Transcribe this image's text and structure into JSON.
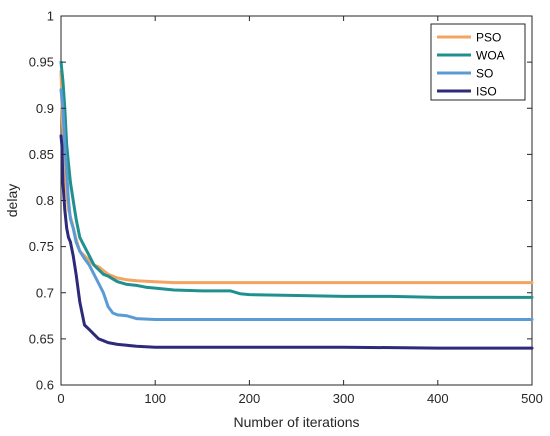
{
  "chart_data": {
    "type": "line",
    "title": "",
    "xlabel": "Number of iterations",
    "ylabel": "delay",
    "xlim": [
      0,
      500
    ],
    "ylim": [
      0.6,
      1
    ],
    "xticks": [
      "0",
      "100",
      "200",
      "300",
      "400",
      "500"
    ],
    "yticks": [
      "0.6",
      "0.65",
      "0.7",
      "0.75",
      "0.8",
      "0.85",
      "0.9",
      "0.95",
      "1"
    ],
    "grid": false,
    "legend_position": "top-right",
    "series": [
      {
        "name": "PSO",
        "color": "#F4A460",
        "x": [
          0,
          2,
          5,
          8,
          12,
          16,
          20,
          25,
          30,
          35,
          40,
          50,
          60,
          70,
          80,
          100,
          120,
          150,
          200,
          300,
          400,
          500
        ],
        "y": [
          0.94,
          0.87,
          0.82,
          0.79,
          0.775,
          0.758,
          0.745,
          0.74,
          0.735,
          0.73,
          0.728,
          0.72,
          0.716,
          0.714,
          0.713,
          0.712,
          0.711,
          0.711,
          0.711,
          0.711,
          0.711,
          0.711
        ]
      },
      {
        "name": "WOA",
        "color": "#20908F",
        "x": [
          0,
          2,
          4,
          6,
          8,
          10,
          13,
          16,
          20,
          25,
          30,
          35,
          40,
          45,
          50,
          55,
          60,
          70,
          80,
          90,
          100,
          120,
          150,
          180,
          190,
          200,
          250,
          300,
          350,
          400,
          500
        ],
        "y": [
          0.95,
          0.93,
          0.9,
          0.86,
          0.84,
          0.82,
          0.8,
          0.78,
          0.76,
          0.75,
          0.74,
          0.73,
          0.725,
          0.72,
          0.718,
          0.715,
          0.712,
          0.709,
          0.708,
          0.706,
          0.705,
          0.703,
          0.702,
          0.702,
          0.699,
          0.698,
          0.697,
          0.696,
          0.696,
          0.695,
          0.695
        ]
      },
      {
        "name": "SO",
        "color": "#5B9BD5",
        "x": [
          0,
          2,
          4,
          6,
          8,
          10,
          13,
          16,
          20,
          25,
          30,
          35,
          40,
          45,
          50,
          55,
          60,
          70,
          80,
          100,
          150,
          200,
          300,
          400,
          500
        ],
        "y": [
          0.92,
          0.9,
          0.86,
          0.83,
          0.8,
          0.78,
          0.77,
          0.755,
          0.745,
          0.737,
          0.73,
          0.72,
          0.71,
          0.7,
          0.685,
          0.678,
          0.676,
          0.675,
          0.672,
          0.671,
          0.671,
          0.671,
          0.671,
          0.671,
          0.671
        ]
      },
      {
        "name": "ISO",
        "color": "#2E2A7A",
        "x": [
          0,
          1,
          2,
          4,
          6,
          8,
          10,
          13,
          16,
          20,
          25,
          30,
          35,
          40,
          45,
          50,
          60,
          70,
          80,
          100,
          120,
          150,
          200,
          300,
          400,
          500
        ],
        "y": [
          0.87,
          0.86,
          0.82,
          0.79,
          0.77,
          0.76,
          0.755,
          0.74,
          0.72,
          0.69,
          0.665,
          0.66,
          0.655,
          0.65,
          0.648,
          0.646,
          0.644,
          0.643,
          0.642,
          0.641,
          0.641,
          0.641,
          0.641,
          0.641,
          0.64,
          0.64
        ]
      }
    ]
  }
}
